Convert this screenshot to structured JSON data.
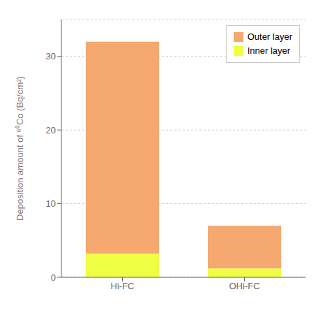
{
  "chart_data": {
    "type": "bar",
    "stacked": true,
    "categories": [
      "Hi-FC",
      "OHi-FC"
    ],
    "series": [
      {
        "name": "Inner layer",
        "color": "#eeff44",
        "values": [
          3.2,
          1.2
        ]
      },
      {
        "name": "Outer layer",
        "color": "#f5a870",
        "values": [
          28.8,
          5.8
        ]
      }
    ],
    "ylabel": "Deposition amount of ⁶⁰Co (Bq/cm²)",
    "ylim": [
      0,
      35
    ],
    "yticks": [
      0,
      10,
      20,
      30
    ],
    "legend": "upper right"
  }
}
